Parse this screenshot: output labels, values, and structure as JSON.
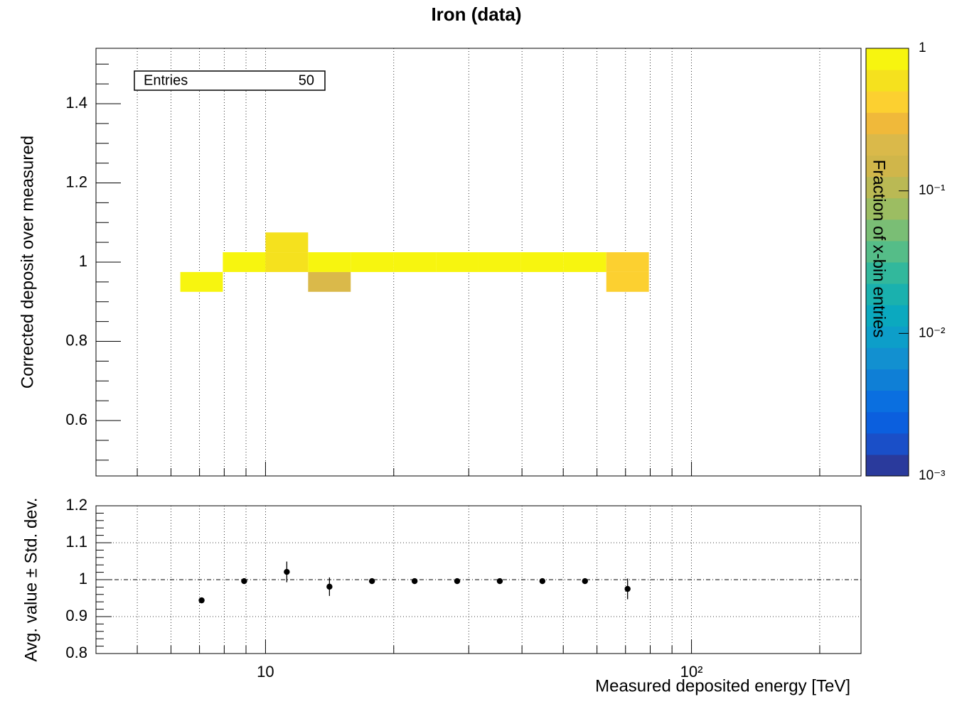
{
  "chart_data": [
    {
      "type": "heatmap",
      "title": "Iron (data)",
      "y_label": "Corrected deposit over measured",
      "x_edges": [
        6.31,
        7.94,
        10,
        12.59,
        15.85,
        19.95,
        25.12,
        31.62,
        39.81,
        50.12,
        63.1,
        79.43
      ],
      "y_edges": [
        0.925,
        0.975,
        1.025,
        1.075
      ],
      "z": [
        [
          1,
          null,
          null,
          0.2,
          null,
          null,
          null,
          null,
          null,
          null,
          0.5
        ],
        [
          null,
          1,
          0.6,
          0.8,
          1,
          1,
          1,
          1,
          1,
          1,
          0.5
        ],
        [
          null,
          null,
          0.6,
          null,
          null,
          null,
          null,
          null,
          null,
          null,
          null
        ]
      ],
      "ylim": [
        0.46,
        1.54
      ],
      "yticks": [
        0.6,
        0.8,
        1,
        1.2,
        1.4
      ],
      "minor_divisions": 4,
      "zlim": [
        0.001,
        1
      ],
      "zlog": true,
      "zticks": [
        {
          "value": 0.001,
          "label": "10⁻³"
        },
        {
          "value": 0.01,
          "label": "10⁻²"
        },
        {
          "value": 0.1,
          "label": "10⁻¹"
        },
        1
      ],
      "z_label": "Fraction of x-bin entries",
      "palette": [
        "#2a3a9c",
        "#1a4fc8",
        "#0b5fde",
        "#0a6fe0",
        "#0f7fd6",
        "#1290d0",
        "#0d9ec9",
        "#0ba9bf",
        "#1ab1ae",
        "#32b89c",
        "#55bd88",
        "#7abe75",
        "#9cbd62",
        "#bab954",
        "#d0b64a",
        "#dab94a",
        "#f0b93a",
        "#fcd030",
        "#f5e11e",
        "#f7f50f"
      ],
      "stats": {
        "label": "Entries",
        "value": 50
      },
      "grid": true
    },
    {
      "type": "errorbar",
      "y_label": "Avg. value ± Std. dev.",
      "x_label": "Measured deposited energy [TeV]",
      "x": [
        7.08,
        8.91,
        11.22,
        14.13,
        17.78,
        22.39,
        28.18,
        35.48,
        44.67,
        56.23,
        70.79
      ],
      "values": [
        0.944,
        0.996,
        1.021,
        0.981,
        0.996,
        0.996,
        0.996,
        0.996,
        0.996,
        0.996,
        0.975
      ],
      "errors": [
        0.002,
        0.003,
        0.028,
        0.025,
        0.002,
        0.002,
        0.002,
        0.002,
        0.002,
        0.002,
        0.028
      ],
      "xlim": [
        4,
        250
      ],
      "xlog": true,
      "xticks": [
        10,
        {
          "value": 100,
          "label": "10²"
        }
      ],
      "xminor": [
        5,
        6,
        7,
        8,
        9,
        20,
        30,
        40,
        50,
        60,
        70,
        80,
        90,
        200
      ],
      "ylim": [
        0.8,
        1.2
      ],
      "yticks": [
        0.8,
        0.9,
        1,
        1.1,
        1.2
      ],
      "minor_divisions": 5,
      "hline": 1,
      "grid": true,
      "color": "#000000"
    }
  ]
}
